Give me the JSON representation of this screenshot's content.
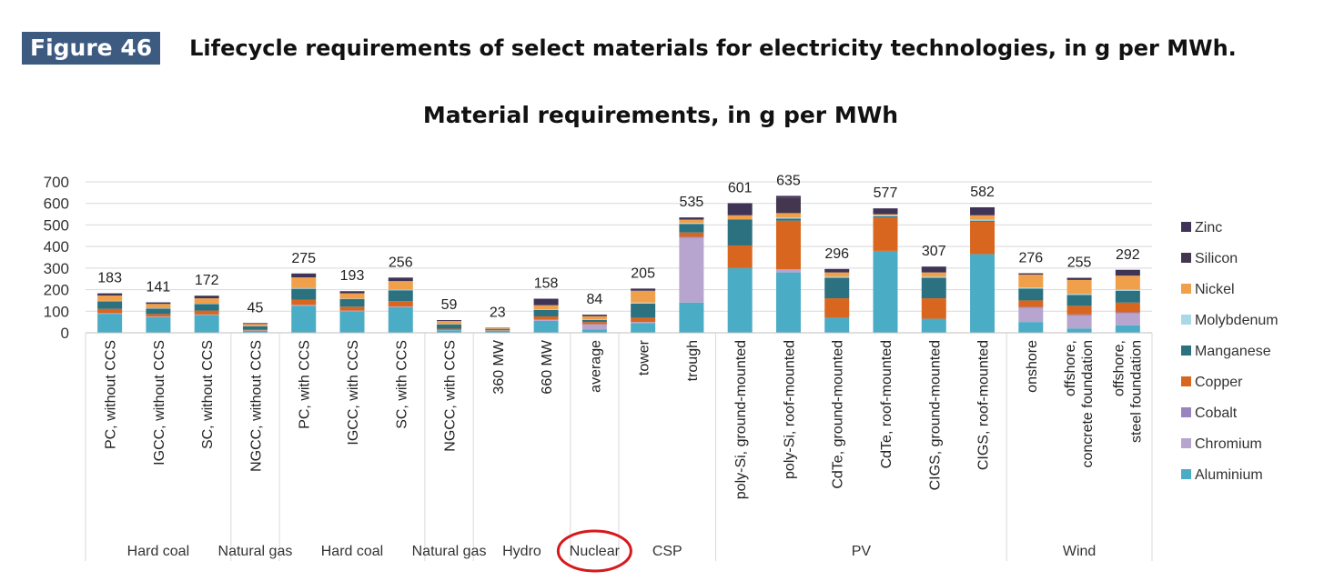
{
  "figure": {
    "badge": "Figure 46",
    "caption": "Lifecycle requirements of select materials for electricity technologies, in g per MWh."
  },
  "chart_data": {
    "type": "bar",
    "stacked": true,
    "title": "Material requirements, in g per MWh",
    "xlabel": "",
    "ylabel": "",
    "ylim": [
      0,
      700
    ],
    "yticks": [
      0,
      100,
      200,
      300,
      400,
      500,
      600,
      700
    ],
    "grid": true,
    "legend_position": "right",
    "highlight": {
      "group": "Nuclear",
      "style": "red-ellipse",
      "color": "#d7191c"
    },
    "categories": [
      "PC, without CCS",
      "IGCC, without CCS",
      "SC, without CCS",
      "NGCC, without CCS",
      "PC, with CCS",
      "IGCC, with CCS",
      "SC, with CCS",
      "NGCC, with CCS",
      "360 MW",
      "660 MW",
      "average",
      "tower",
      "trough",
      "poly-Si, ground-mounted",
      "poly-Si, roof-mounted",
      "CdTe, ground-mounted",
      "CdTe, roof-mounted",
      "CIGS, ground-mounted",
      "CIGS, roof-mounted",
      "onshore",
      "offshore, concrete foundation",
      "offshore, steel foundation"
    ],
    "groups": [
      {
        "label": "Hard coal",
        "span": 3
      },
      {
        "label": "Natural gas",
        "span": 1
      },
      {
        "label": "Hard coal",
        "span": 3
      },
      {
        "label": "Natural gas",
        "span": 1
      },
      {
        "label": "Hydro",
        "span": 2
      },
      {
        "label": "Nuclear",
        "span": 1
      },
      {
        "label": "CSP",
        "span": 2
      },
      {
        "label": "PV",
        "span": 6
      },
      {
        "label": "Wind",
        "span": 3
      }
    ],
    "totals": [
      183,
      141,
      172,
      45,
      275,
      193,
      256,
      59,
      23,
      158,
      84,
      205,
      535,
      601,
      635,
      296,
      577,
      307,
      582,
      276,
      255,
      292
    ],
    "series": [
      {
        "name": "Aluminium",
        "color": "#4bacc6",
        "values": [
          88,
          72,
          82,
          10,
          125,
          100,
          118,
          12,
          10,
          55,
          15,
          45,
          140,
          300,
          280,
          70,
          380,
          65,
          365,
          50,
          20,
          35
        ]
      },
      {
        "name": "Chromium",
        "color": "#b7a4cf",
        "values": [
          2,
          2,
          2,
          1,
          3,
          2,
          3,
          1,
          1,
          5,
          25,
          5,
          300,
          0,
          15,
          0,
          0,
          0,
          0,
          65,
          60,
          55
        ]
      },
      {
        "name": "Cobalt",
        "color": "#9a84bd",
        "values": [
          1,
          1,
          1,
          0,
          1,
          1,
          1,
          0,
          0,
          1,
          0,
          0,
          5,
          0,
          0,
          0,
          0,
          0,
          0,
          5,
          5,
          5
        ]
      },
      {
        "name": "Copper",
        "color": "#d9661f",
        "values": [
          20,
          12,
          18,
          4,
          25,
          18,
          25,
          6,
          2,
          15,
          10,
          20,
          20,
          105,
          225,
          90,
          155,
          95,
          150,
          30,
          40,
          45
        ]
      },
      {
        "name": "Manganese",
        "color": "#2b7180",
        "values": [
          35,
          25,
          30,
          15,
          50,
          35,
          50,
          20,
          5,
          30,
          10,
          65,
          40,
          120,
          10,
          95,
          5,
          95,
          5,
          55,
          50,
          55
        ]
      },
      {
        "name": "Molybdenum",
        "color": "#a9d8e6",
        "values": [
          2,
          2,
          2,
          1,
          3,
          2,
          3,
          1,
          0,
          2,
          2,
          5,
          5,
          0,
          5,
          5,
          5,
          5,
          5,
          5,
          5,
          5
        ]
      },
      {
        "name": "Nickel",
        "color": "#f0a04b",
        "values": [
          25,
          20,
          25,
          10,
          50,
          25,
          40,
          15,
          3,
          20,
          15,
          55,
          15,
          20,
          20,
          20,
          5,
          20,
          20,
          60,
          65,
          65
        ]
      },
      {
        "name": "Silicon",
        "color": "#45364f",
        "values": [
          0,
          0,
          0,
          0,
          0,
          0,
          0,
          0,
          0,
          0,
          0,
          0,
          0,
          0,
          70,
          0,
          0,
          0,
          0,
          0,
          0,
          0
        ]
      },
      {
        "name": "Zinc",
        "color": "#3f3356",
        "values": [
          10,
          7,
          12,
          4,
          18,
          10,
          16,
          4,
          2,
          30,
          7,
          10,
          10,
          56,
          10,
          16,
          27,
          27,
          37,
          6,
          10,
          27
        ]
      }
    ],
    "legend_order": [
      "Zinc",
      "Silicon",
      "Nickel",
      "Molybdenum",
      "Manganese",
      "Copper",
      "Cobalt",
      "Chromium",
      "Aluminium"
    ]
  }
}
